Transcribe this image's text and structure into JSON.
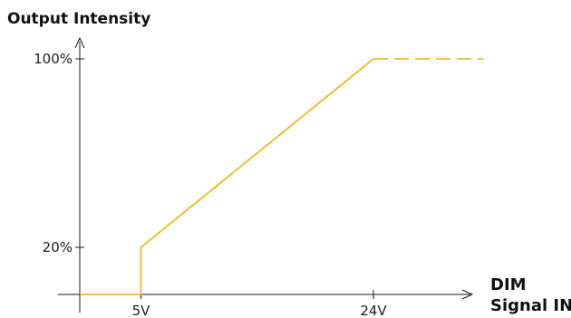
{
  "chart_data": {
    "type": "line",
    "title": "Output Intensity",
    "xlabel": "DIM Signal IN",
    "ylabel": "",
    "x_ticks": [
      "5V",
      "24V"
    ],
    "y_ticks": [
      "20%",
      "100%"
    ],
    "xlim": [
      0,
      31
    ],
    "ylim": [
      0,
      110
    ],
    "grid": false,
    "legend": "none",
    "colors": {
      "series": "#f2b824",
      "axis": "#1a1a1a",
      "text": "#111111"
    },
    "series": [
      {
        "style": "solid",
        "points": [
          [
            0,
            0
          ],
          [
            5,
            0
          ],
          [
            5,
            20
          ],
          [
            24,
            100
          ]
        ]
      },
      {
        "style": "dashed",
        "points": [
          [
            24,
            100
          ],
          [
            33,
            100
          ]
        ]
      }
    ]
  }
}
